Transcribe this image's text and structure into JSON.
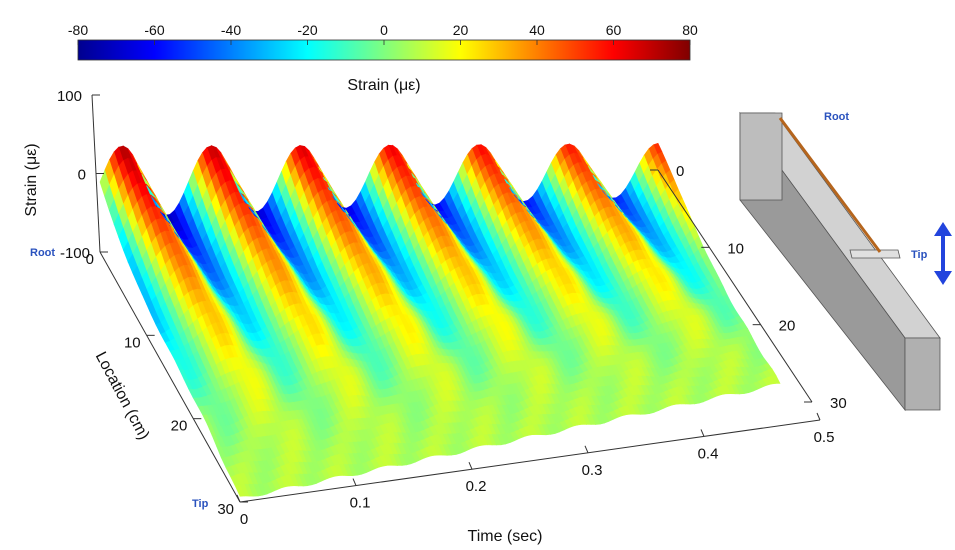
{
  "chart_data": {
    "type": "surface3d",
    "title": "",
    "colorbar": {
      "label": "Strain (με)",
      "ticks": [
        -80,
        -60,
        -40,
        -20,
        0,
        20,
        40,
        60,
        80
      ],
      "range": [
        -80,
        80
      ],
      "colormap": "jet"
    },
    "axes": {
      "x": {
        "label": "Time (sec)",
        "range": [
          0,
          0.5
        ],
        "ticks": [
          "0",
          "0.1",
          "0.2",
          "0.3",
          "0.4",
          "0.5"
        ]
      },
      "y": {
        "label": "Location (cm)",
        "range": [
          0,
          30
        ],
        "ticks": [
          "0",
          "10",
          "20",
          "30"
        ]
      },
      "z": {
        "label": "Strain (με)",
        "range": [
          -100,
          100
        ],
        "ticks": [
          "100",
          "0",
          "-100"
        ]
      },
      "right_ticks": [
        "0",
        "10",
        "20",
        "30"
      ]
    },
    "end_labels": {
      "root": "Root",
      "tip": "Tip"
    },
    "series": [
      {
        "oscillation": {
          "peak_times_sec": [
            0.02,
            0.1,
            0.18,
            0.26,
            0.34,
            0.42
          ],
          "peak_strain_at_root": 75,
          "trough_strain_at_root": -75,
          "strain_at_tip": 10
        }
      }
    ]
  },
  "inset": {
    "root_label": "Root",
    "tip_label": "Tip",
    "colors": {
      "beam": "#c9c9c9",
      "sensor": "#b5651d",
      "arrow": "#2244dd"
    }
  }
}
